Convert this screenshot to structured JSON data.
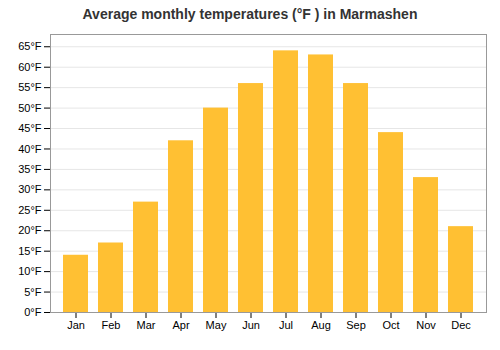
{
  "chart_data": {
    "type": "bar",
    "title": "Average monthly temperatures (°F ) in Marmashen",
    "categories": [
      "Jan",
      "Feb",
      "Mar",
      "Apr",
      "May",
      "Jun",
      "Jul",
      "Aug",
      "Sep",
      "Oct",
      "Nov",
      "Dec"
    ],
    "values": [
      14,
      17,
      27,
      42,
      50,
      56,
      64,
      63,
      56,
      44,
      33,
      21
    ],
    "color": "#FFC033",
    "ylim": [
      0,
      68
    ],
    "yticks": [
      {
        "value": 0,
        "label": "0°F"
      },
      {
        "value": 5,
        "label": "5°F"
      },
      {
        "value": 10,
        "label": "10°F"
      },
      {
        "value": 15,
        "label": "15°F"
      },
      {
        "value": 20,
        "label": "20°F"
      },
      {
        "value": 25,
        "label": "25°F"
      },
      {
        "value": 30,
        "label": "30°F"
      },
      {
        "value": 35,
        "label": "35°F"
      },
      {
        "value": 40,
        "label": "40°F"
      },
      {
        "value": 45,
        "label": "45°F"
      },
      {
        "value": 50,
        "label": "50°F"
      },
      {
        "value": 55,
        "label": "55°F"
      },
      {
        "value": 60,
        "label": "60°F"
      },
      {
        "value": 65,
        "label": "65°F"
      }
    ],
    "grid": true
  }
}
